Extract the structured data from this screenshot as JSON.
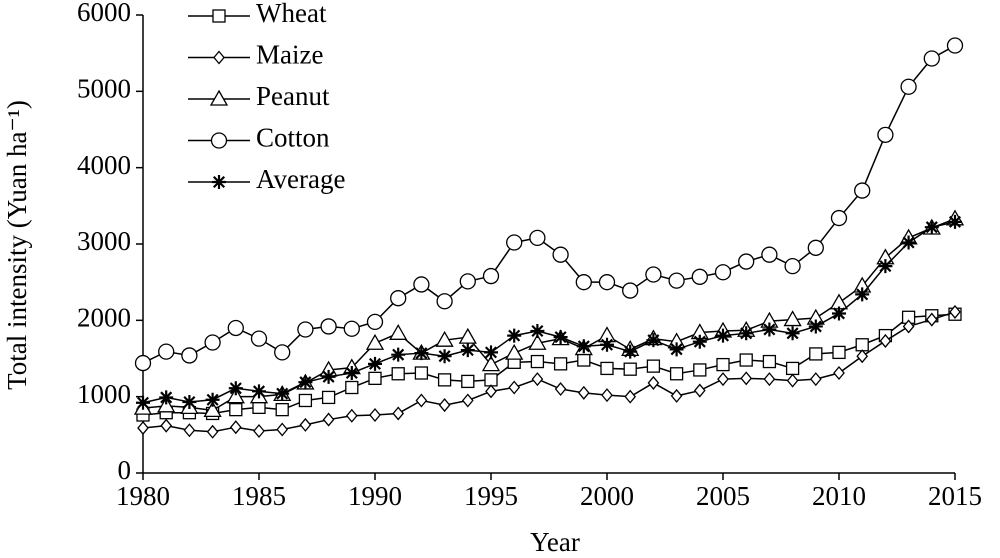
{
  "chart_data": {
    "type": "line",
    "xlabel": "Year",
    "ylabel": "Total intensity (Yuan ha⁻¹)",
    "x": [
      1980,
      1981,
      1982,
      1983,
      1984,
      1985,
      1986,
      1987,
      1988,
      1989,
      1990,
      1991,
      1992,
      1993,
      1994,
      1995,
      1996,
      1997,
      1998,
      1999,
      2000,
      2001,
      2002,
      2003,
      2004,
      2005,
      2006,
      2007,
      2008,
      2009,
      2010,
      2011,
      2012,
      2013,
      2014,
      2015
    ],
    "xlim": [
      1980,
      2015
    ],
    "xticks": [
      1980,
      1985,
      1990,
      1995,
      2000,
      2005,
      2010,
      2015
    ],
    "ylim": [
      0,
      6000
    ],
    "yticks": [
      0,
      1000,
      2000,
      3000,
      4000,
      5000,
      6000
    ],
    "grid": false,
    "legend": "upper left",
    "series": [
      {
        "name": "Wheat",
        "color": "#000000",
        "marker": "square",
        "values": [
          760,
          790,
          790,
          780,
          830,
          860,
          830,
          950,
          990,
          1120,
          1240,
          1300,
          1310,
          1220,
          1200,
          1220,
          1450,
          1460,
          1430,
          1480,
          1370,
          1360,
          1400,
          1300,
          1350,
          1420,
          1480,
          1460,
          1370,
          1560,
          1580,
          1680,
          1800,
          2040,
          2060,
          2080
        ]
      },
      {
        "name": "Maize",
        "color": "#000000",
        "marker": "diamond",
        "values": [
          590,
          620,
          560,
          540,
          600,
          550,
          570,
          630,
          700,
          750,
          760,
          780,
          950,
          890,
          950,
          1070,
          1120,
          1230,
          1100,
          1050,
          1020,
          1000,
          1180,
          1010,
          1080,
          1230,
          1240,
          1230,
          1210,
          1230,
          1310,
          1530,
          1730,
          1920,
          2010,
          2110
        ]
      },
      {
        "name": "Peanut",
        "color": "#000000",
        "marker": "triangle",
        "values": [
          850,
          880,
          860,
          820,
          1000,
          1000,
          1030,
          1180,
          1350,
          1380,
          1700,
          1830,
          1570,
          1740,
          1780,
          1420,
          1570,
          1700,
          1760,
          1630,
          1800,
          1620,
          1760,
          1720,
          1840,
          1860,
          1870,
          1990,
          2010,
          2030,
          2230,
          2450,
          2820,
          3080,
          3210,
          3330
        ]
      },
      {
        "name": "Cotton",
        "color": "#000000",
        "marker": "circle",
        "values": [
          1440,
          1590,
          1540,
          1710,
          1900,
          1760,
          1580,
          1880,
          1920,
          1890,
          1980,
          2290,
          2470,
          2250,
          2510,
          2580,
          3020,
          3080,
          2860,
          2500,
          2500,
          2390,
          2600,
          2520,
          2570,
          2630,
          2770,
          2860,
          2710,
          2950,
          3340,
          3700,
          4430,
          5060,
          5430,
          5600
        ]
      },
      {
        "name": "Average",
        "color": "#000000",
        "marker": "asterisk",
        "values": [
          920,
          990,
          930,
          960,
          1110,
          1070,
          1040,
          1190,
          1260,
          1310,
          1430,
          1550,
          1570,
          1530,
          1610,
          1580,
          1800,
          1860,
          1780,
          1660,
          1680,
          1590,
          1740,
          1620,
          1720,
          1800,
          1830,
          1880,
          1830,
          1920,
          2090,
          2340,
          2710,
          3020,
          3220,
          3290
        ]
      }
    ]
  }
}
